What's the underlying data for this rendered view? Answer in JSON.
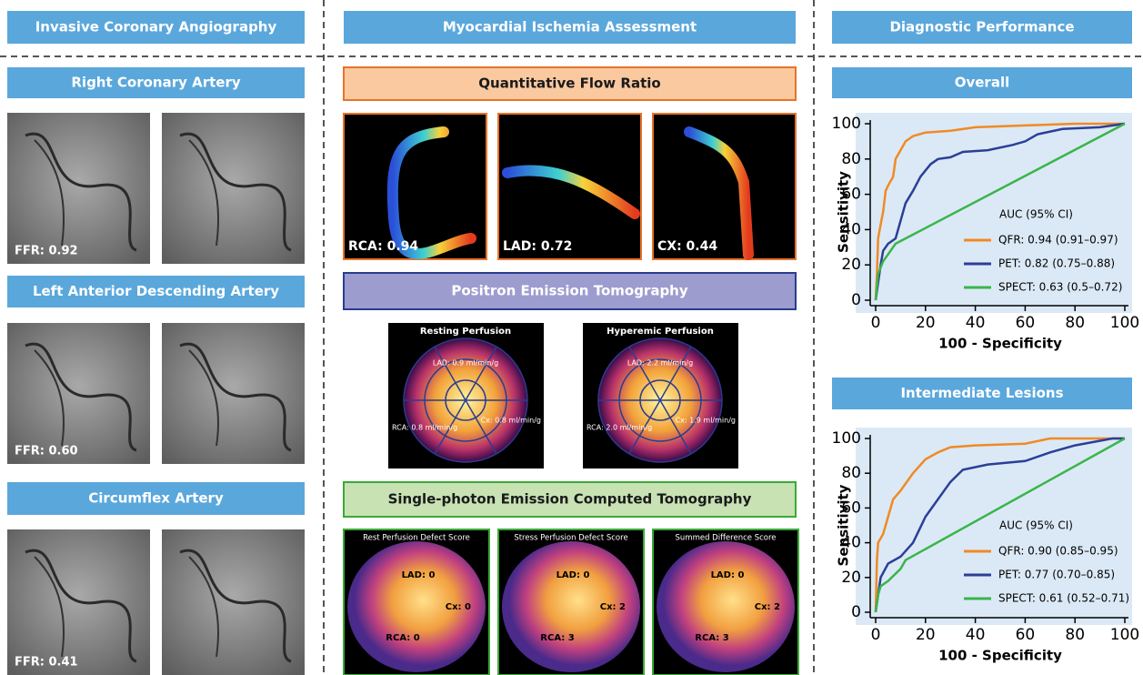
{
  "header": {
    "columns": [
      "Invasive Coronary Angiography",
      "Myocardial Ischemia Assessment",
      "Diagnostic Performance"
    ]
  },
  "left": {
    "panels": [
      {
        "title": "Right Coronary Artery",
        "ffr": "FFR: 0.92"
      },
      {
        "title": "Left Anterior Descending Artery",
        "ffr": "FFR: 0.60"
      },
      {
        "title": "Circumflex Artery",
        "ffr": "FFR: 0.41"
      }
    ]
  },
  "middle": {
    "qfr": {
      "title": "Quantitative Flow Ratio",
      "images": [
        "RCA: 0.94",
        "LAD: 0.72",
        "CX: 0.44"
      ]
    },
    "pet": {
      "title": "Positron Emission Tomography",
      "images": [
        {
          "title": "Resting Perfusion",
          "lad": "LAD: 0.9 ml/min/g",
          "rca": "RCA: 0.8 ml/min/g",
          "cx": "Cx: 0.8 ml/min/g"
        },
        {
          "title": "Hyperemic Perfusion",
          "lad": "LAD: 2.2 ml/min/g",
          "rca": "RCA: 2.0 ml/min/g",
          "cx": "Cx: 1.9 ml/min/g"
        }
      ]
    },
    "spect": {
      "title": "Single-photon Emission Computed Tomography",
      "images": [
        {
          "title": "Rest Perfusion Defect Score",
          "lad": "LAD: 0",
          "cx": "Cx: 0",
          "rca": "RCA: 0"
        },
        {
          "title": "Stress Perfusion Defect Score",
          "lad": "LAD: 0",
          "cx": "Cx: 2",
          "rca": "RCA: 3"
        },
        {
          "title": "Summed Difference Score",
          "lad": "LAD: 0",
          "cx": "Cx: 2",
          "rca": "RCA: 3"
        }
      ]
    }
  },
  "chart_data": [
    {
      "type": "line",
      "title": "Overall",
      "xlabel": "100 - Specificity",
      "ylabel": "Sensitivity",
      "legend_title": "AUC (95% CI)",
      "xlim": [
        0,
        100
      ],
      "ylim": [
        0,
        100
      ],
      "xticks": [
        0,
        20,
        40,
        60,
        80,
        100
      ],
      "yticks": [
        0,
        20,
        40,
        60,
        80,
        100
      ],
      "series": [
        {
          "name": "QFR: 0.94 (0.91–0.97)",
          "color": "#f08a24",
          "x": [
            0,
            0.5,
            1,
            2,
            3,
            4,
            5,
            7,
            8,
            10,
            12,
            15,
            20,
            30,
            40,
            60,
            80,
            100
          ],
          "values": [
            0,
            15,
            35,
            43,
            50,
            62,
            65,
            70,
            80,
            85,
            90,
            93,
            95,
            96,
            98,
            99,
            100,
            100
          ]
        },
        {
          "name": "PET: 0.82 (0.75–0.88)",
          "color": "#2b3f96",
          "x": [
            0,
            1,
            2,
            3,
            5,
            8,
            10,
            12,
            15,
            18,
            22,
            25,
            30,
            35,
            45,
            55,
            60,
            65,
            75,
            90,
            100
          ],
          "values": [
            0,
            10,
            20,
            28,
            32,
            35,
            45,
            55,
            62,
            70,
            77,
            80,
            81,
            84,
            85,
            88,
            90,
            94,
            97,
            98,
            100
          ]
        },
        {
          "name": "SPECT: 0.63 (0.5–0.72)",
          "color": "#3ab54a",
          "x": [
            0,
            1,
            3,
            8,
            100
          ],
          "values": [
            0,
            15,
            22,
            32,
            100
          ]
        }
      ]
    },
    {
      "type": "line",
      "title": "Intermediate Lesions",
      "xlabel": "100 - Specificity",
      "ylabel": "Sensitivity",
      "legend_title": "AUC (95% CI)",
      "xlim": [
        0,
        100
      ],
      "ylim": [
        0,
        100
      ],
      "xticks": [
        0,
        20,
        40,
        60,
        80,
        100
      ],
      "yticks": [
        0,
        20,
        40,
        60,
        80,
        100
      ],
      "series": [
        {
          "name": "QFR: 0.90 (0.85–0.95)",
          "color": "#f08a24",
          "x": [
            0,
            0.5,
            1,
            3,
            5,
            7,
            10,
            15,
            20,
            25,
            30,
            40,
            60,
            70,
            100
          ],
          "values": [
            0,
            30,
            40,
            45,
            55,
            65,
            70,
            80,
            88,
            92,
            95,
            96,
            97,
            100,
            100
          ]
        },
        {
          "name": "PET: 0.77 (0.70–0.85)",
          "color": "#2b3f96",
          "x": [
            0,
            1,
            2,
            5,
            10,
            15,
            20,
            25,
            30,
            35,
            45,
            60,
            70,
            80,
            95,
            100
          ],
          "values": [
            0,
            10,
            20,
            28,
            32,
            40,
            55,
            65,
            75,
            82,
            85,
            87,
            92,
            96,
            100,
            100
          ]
        },
        {
          "name": "SPECT: 0.61 (0.52–0.71)",
          "color": "#3ab54a",
          "x": [
            0,
            1,
            2,
            5,
            10,
            12,
            100
          ],
          "values": [
            0,
            10,
            15,
            18,
            25,
            30,
            100
          ]
        }
      ]
    }
  ]
}
